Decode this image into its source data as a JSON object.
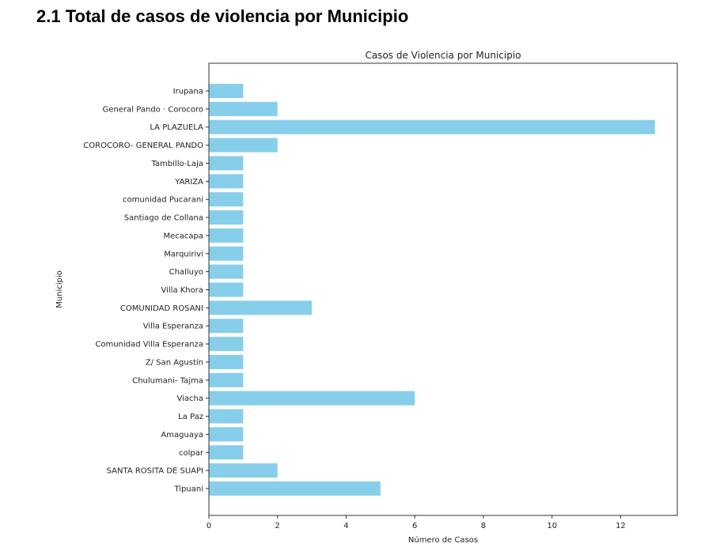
{
  "heading": "2.1 Total de casos de violencia por Municipio",
  "chart_data": {
    "type": "bar",
    "orientation": "horizontal",
    "title": "Casos de Violencia por Municipio",
    "xlabel": "Número de Casos",
    "ylabel": "Municipio",
    "xlim": [
      0,
      13.65
    ],
    "xticks": [
      0,
      2,
      4,
      6,
      8,
      10,
      12
    ],
    "color": "#87CEEB",
    "grid": false,
    "categories": [
      "Irupana",
      "General Pando · Corocoro",
      "LA PLAZUELA",
      "COROCORO- GENERAL PANDO",
      "Tambillo-Laja",
      "YARIZA",
      "comunidad Pucarani",
      "Santiago de Collana",
      "Mecacapa",
      "Marquirivi",
      "Challuyo",
      "Villa Khora",
      "COMUNIDAD ROSANI",
      "Villa Esperanza",
      "Comunidad Villa Esperanza",
      "Z/ San Agustín",
      "Chulumani- Tajma",
      "Viacha",
      "La Paz",
      "Amaguaya",
      "colpar",
      "SANTA ROSITA DE SUAPI",
      "Tipuani"
    ],
    "values": [
      1,
      2,
      13,
      2,
      1,
      1,
      1,
      1,
      1,
      1,
      1,
      1,
      3,
      1,
      1,
      1,
      1,
      6,
      1,
      1,
      1,
      2,
      5
    ]
  }
}
